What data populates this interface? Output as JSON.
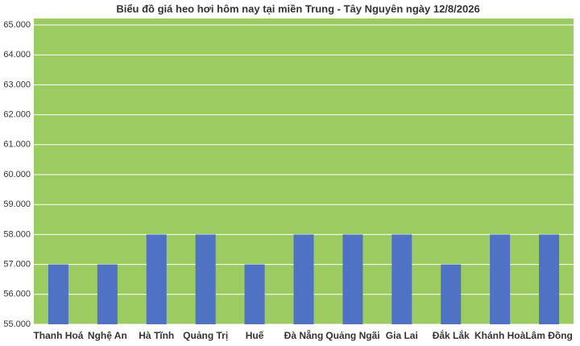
{
  "chart_data": {
    "type": "bar",
    "title": "Biểu đồ giá heo hơi hôm nay tại miền Trung - Tây Nguyên ngày 12/8/2026",
    "categories": [
      "Thanh Hoá",
      "Nghệ An",
      "Hà Tĩnh",
      "Quảng Trị",
      "Huế",
      "Đà Nẵng",
      "Quảng Ngãi",
      "Gia Lai",
      "Đắk Lắk",
      "Khánh Hoà",
      "Lâm Đồng"
    ],
    "values": [
      57000,
      57000,
      58000,
      58000,
      57000,
      58000,
      58000,
      58000,
      57000,
      58000,
      58000
    ],
    "color": "#4f72c4",
    "plot_color": "#9ccb62",
    "ylim": [
      55000,
      65000
    ],
    "yticks": [
      {
        "value": 55000,
        "label": "55.000"
      },
      {
        "value": 56000,
        "label": "56.000"
      },
      {
        "value": 57000,
        "label": "57.000"
      },
      {
        "value": 58000,
        "label": "58.000"
      },
      {
        "value": 59000,
        "label": "59.000"
      },
      {
        "value": 60000,
        "label": "60.000"
      },
      {
        "value": 61000,
        "label": "61.000"
      },
      {
        "value": 62000,
        "label": "62.000"
      },
      {
        "value": 63000,
        "label": "63.000"
      },
      {
        "value": 64000,
        "label": "64.000"
      },
      {
        "value": 65000,
        "label": "65.000"
      }
    ],
    "grid": true
  }
}
